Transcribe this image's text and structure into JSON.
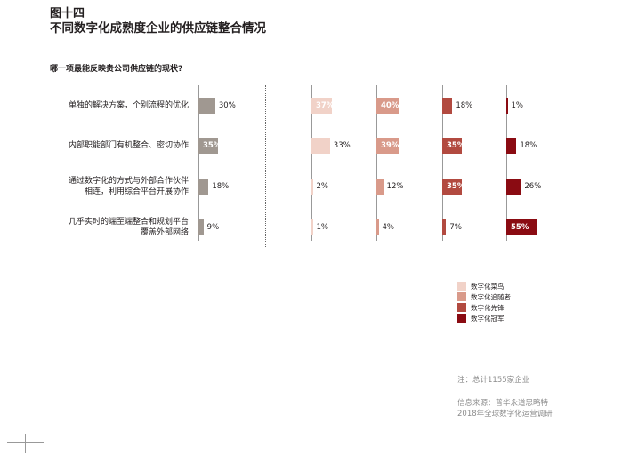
{
  "figure_label": "图十四",
  "title": "不同数字化成熟度企业的供应链整合情况",
  "chart_data": {
    "type": "bar",
    "question": "哪一项最能反映贵公司供应链的现状?",
    "categories": [
      [
        "单独的解决方案，个别流程的优化"
      ],
      [
        "内部职能部门有机整合、密切协作"
      ],
      [
        "通过数字化的方式与外部合作伙伴",
        "相连，利用综合平台开展协作"
      ],
      [
        "几乎实时的端至端整合和规划平台",
        "覆盖外部网络"
      ]
    ],
    "overall": {
      "values": [
        30,
        35,
        18,
        9
      ],
      "color": "#a09891"
    },
    "series": [
      {
        "name": "数字化菜鸟",
        "values": [
          37,
          33,
          2,
          1
        ],
        "color": "#f1d2c8"
      },
      {
        "name": "数字化追随者",
        "values": [
          40,
          39,
          12,
          4
        ],
        "color": "#d99a8a"
      },
      {
        "name": "数字化先锋",
        "values": [
          18,
          35,
          35,
          7
        ],
        "color": "#b24a40"
      },
      {
        "name": "数字化冠军",
        "values": [
          1,
          18,
          26,
          55
        ],
        "color": "#8a0b12"
      }
    ],
    "value_suffix": "%"
  },
  "note": "注：总计1155家企业",
  "source": [
    "信息来源：普华永道思略特",
    "2018年全球数字化运营调研"
  ]
}
